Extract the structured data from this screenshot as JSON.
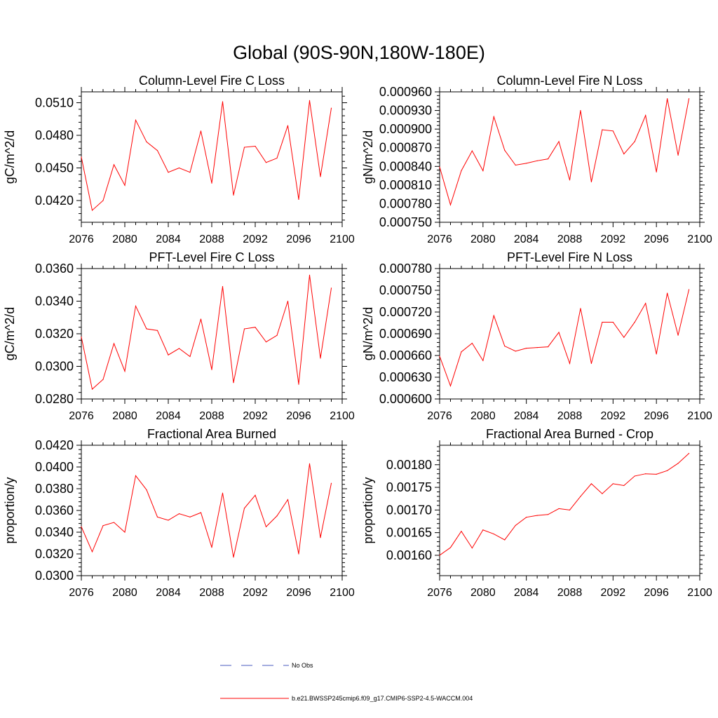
{
  "figure": {
    "title": "Global (90S-90N,180W-180E)"
  },
  "legend": {
    "entries": [
      {
        "label": "No Obs",
        "color": "#4a5bbf",
        "style": "dashed"
      },
      {
        "label": "b.e21.BWSSP245cmip6.f09_g17.CMIP6-SSP2-4.5-WACCM.004",
        "color": "#ff0000",
        "style": "solid"
      }
    ]
  },
  "colors": {
    "series": "#ff0000",
    "axis": "#000000"
  },
  "chart_data": [
    {
      "type": "line",
      "title": "Column-Level Fire C Loss",
      "ylabel": "gC/m^2/d",
      "xlim": [
        2076,
        2100
      ],
      "xticks": [
        2076,
        2080,
        2084,
        2088,
        2092,
        2096,
        2100
      ],
      "xtick_labels": [
        "2076",
        "2080",
        "2084",
        "2088",
        "2092",
        "2096",
        "2100"
      ],
      "ylim": [
        0.04,
        0.052
      ],
      "yticks": [
        0.042,
        0.045,
        0.048,
        0.051
      ],
      "ytick_labels": [
        "0.0420",
        "0.0450",
        "0.0480",
        "0.0510"
      ],
      "x": [
        2076,
        2077,
        2078,
        2079,
        2080,
        2081,
        2082,
        2083,
        2084,
        2085,
        2086,
        2087,
        2088,
        2089,
        2090,
        2091,
        2092,
        2093,
        2094,
        2095,
        2096,
        2097,
        2098,
        2099
      ],
      "values": [
        0.046,
        0.0411,
        0.042,
        0.0453,
        0.0434,
        0.0494,
        0.0474,
        0.0466,
        0.0446,
        0.045,
        0.0446,
        0.0484,
        0.0436,
        0.0511,
        0.0425,
        0.0469,
        0.047,
        0.0455,
        0.0459,
        0.0489,
        0.0421,
        0.0512,
        0.0442,
        0.0505
      ]
    },
    {
      "type": "line",
      "title": "Column-Level Fire N Loss",
      "ylabel": "gN/m^2/d",
      "xlim": [
        2076,
        2100
      ],
      "xticks": [
        2076,
        2080,
        2084,
        2088,
        2092,
        2096,
        2100
      ],
      "xtick_labels": [
        "2076",
        "2080",
        "2084",
        "2088",
        "2092",
        "2096",
        "2100"
      ],
      "ylim": [
        0.00075,
        0.00096
      ],
      "yticks": [
        0.00075,
        0.00078,
        0.00081,
        0.00084,
        0.00087,
        0.0009,
        0.00093,
        0.00096
      ],
      "ytick_labels": [
        "0.000750",
        "0.000780",
        "0.000810",
        "0.000840",
        "0.000870",
        "0.000900",
        "0.000930",
        "0.000960"
      ],
      "x": [
        2076,
        2077,
        2078,
        2079,
        2080,
        2081,
        2082,
        2083,
        2084,
        2085,
        2086,
        2087,
        2088,
        2089,
        2090,
        2091,
        2092,
        2093,
        2094,
        2095,
        2096,
        2097,
        2098,
        2099
      ],
      "values": [
        0.000839,
        0.000778,
        0.000833,
        0.000865,
        0.000833,
        0.00092,
        0.000866,
        0.000842,
        0.000845,
        0.000849,
        0.000852,
        0.00088,
        0.000818,
        0.00093,
        0.000815,
        0.000899,
        0.000897,
        0.00086,
        0.00088,
        0.000922,
        0.000831,
        0.000949,
        0.000858,
        0.000949
      ]
    },
    {
      "type": "line",
      "title": "PFT-Level Fire C Loss",
      "ylabel": "gC/m^2/d",
      "xlim": [
        2076,
        2100
      ],
      "xticks": [
        2076,
        2080,
        2084,
        2088,
        2092,
        2096,
        2100
      ],
      "xtick_labels": [
        "2076",
        "2080",
        "2084",
        "2088",
        "2092",
        "2096",
        "2100"
      ],
      "ylim": [
        0.028,
        0.036
      ],
      "yticks": [
        0.028,
        0.03,
        0.032,
        0.034,
        0.036
      ],
      "ytick_labels": [
        "0.0280",
        "0.0300",
        "0.0320",
        "0.0340",
        "0.0360"
      ],
      "x": [
        2076,
        2077,
        2078,
        2079,
        2080,
        2081,
        2082,
        2083,
        2084,
        2085,
        2086,
        2087,
        2088,
        2089,
        2090,
        2091,
        2092,
        2093,
        2094,
        2095,
        2096,
        2097,
        2098,
        2099
      ],
      "values": [
        0.0318,
        0.0286,
        0.0292,
        0.0314,
        0.0297,
        0.0337,
        0.0323,
        0.0322,
        0.0307,
        0.0311,
        0.0306,
        0.0329,
        0.0298,
        0.0349,
        0.029,
        0.0323,
        0.0324,
        0.0315,
        0.0319,
        0.034,
        0.0289,
        0.0356,
        0.0305,
        0.0348
      ]
    },
    {
      "type": "line",
      "title": "PFT-Level Fire N Loss",
      "ylabel": "gN/m^2/d",
      "xlim": [
        2076,
        2100
      ],
      "xticks": [
        2076,
        2080,
        2084,
        2088,
        2092,
        2096,
        2100
      ],
      "xtick_labels": [
        "2076",
        "2080",
        "2084",
        "2088",
        "2092",
        "2096",
        "2100"
      ],
      "ylim": [
        0.0006,
        0.00078
      ],
      "yticks": [
        0.0006,
        0.00063,
        0.00066,
        0.00069,
        0.00072,
        0.00075,
        0.00078
      ],
      "ytick_labels": [
        "0.000600",
        "0.000630",
        "0.000660",
        "0.000690",
        "0.000720",
        "0.000750",
        "0.000780"
      ],
      "x": [
        2076,
        2077,
        2078,
        2079,
        2080,
        2081,
        2082,
        2083,
        2084,
        2085,
        2086,
        2087,
        2088,
        2089,
        2090,
        2091,
        2092,
        2093,
        2094,
        2095,
        2096,
        2097,
        2098,
        2099
      ],
      "values": [
        0.000659,
        0.000618,
        0.000665,
        0.000677,
        0.000653,
        0.000715,
        0.000673,
        0.000666,
        0.00067,
        0.000671,
        0.000672,
        0.000692,
        0.000649,
        0.000725,
        0.000649,
        0.000706,
        0.000706,
        0.000685,
        0.000706,
        0.000732,
        0.000662,
        0.000746,
        0.000688,
        0.000751
      ]
    },
    {
      "type": "line",
      "title": "Fractional Area Burned",
      "ylabel": "proportion/y",
      "xlim": [
        2076,
        2100
      ],
      "xticks": [
        2076,
        2080,
        2084,
        2088,
        2092,
        2096,
        2100
      ],
      "xtick_labels": [
        "2076",
        "2080",
        "2084",
        "2088",
        "2092",
        "2096",
        "2100"
      ],
      "ylim": [
        0.03,
        0.042
      ],
      "yticks": [
        0.03,
        0.032,
        0.034,
        0.036,
        0.038,
        0.04,
        0.042
      ],
      "ytick_labels": [
        "0.0300",
        "0.0320",
        "0.0340",
        "0.0360",
        "0.0380",
        "0.0400",
        "0.0420"
      ],
      "x": [
        2076,
        2077,
        2078,
        2079,
        2080,
        2081,
        2082,
        2083,
        2084,
        2085,
        2086,
        2087,
        2088,
        2089,
        2090,
        2091,
        2092,
        2093,
        2094,
        2095,
        2096,
        2097,
        2098,
        2099
      ],
      "values": [
        0.0345,
        0.0322,
        0.0346,
        0.0349,
        0.034,
        0.0392,
        0.0379,
        0.0354,
        0.0351,
        0.0357,
        0.0354,
        0.0358,
        0.0326,
        0.0376,
        0.0317,
        0.0362,
        0.0374,
        0.0345,
        0.0355,
        0.037,
        0.032,
        0.0403,
        0.0335,
        0.0385
      ]
    },
    {
      "type": "line",
      "title": "Fractional Area Burned - Crop",
      "ylabel": "proportion/y",
      "xlim": [
        2076,
        2100
      ],
      "xticks": [
        2076,
        2080,
        2084,
        2088,
        2092,
        2096,
        2100
      ],
      "xtick_labels": [
        "2076",
        "2080",
        "2084",
        "2088",
        "2092",
        "2096",
        "2100"
      ],
      "ylim": [
        0.001555,
        0.001843
      ],
      "yticks": [
        0.0016,
        0.00165,
        0.0017,
        0.00175,
        0.0018
      ],
      "ytick_labels": [
        "0.00160",
        "0.00165",
        "0.00170",
        "0.00175",
        "0.00180"
      ],
      "x": [
        2076,
        2077,
        2078,
        2079,
        2080,
        2081,
        2082,
        2083,
        2084,
        2085,
        2086,
        2087,
        2088,
        2089,
        2090,
        2091,
        2092,
        2093,
        2094,
        2095,
        2096,
        2097,
        2098,
        2099
      ],
      "values": [
        0.0016,
        0.001617,
        0.001653,
        0.001616,
        0.001656,
        0.001647,
        0.001634,
        0.001666,
        0.001684,
        0.001688,
        0.00169,
        0.001703,
        0.0017,
        0.00173,
        0.001758,
        0.001736,
        0.001758,
        0.001754,
        0.001775,
        0.00178,
        0.001779,
        0.001787,
        0.001803,
        0.001825
      ]
    }
  ]
}
